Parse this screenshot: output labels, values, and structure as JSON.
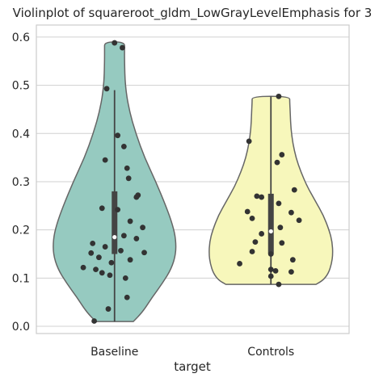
{
  "chart_data": {
    "type": "violin",
    "title": "Violinplot of squareroot_gldm_LowGrayLevelEmphasis for 3",
    "xlabel": "target",
    "ylabel": "",
    "categories": [
      "Baseline",
      "Controls"
    ],
    "ylim": [
      -0.015,
      0.625
    ],
    "yticks": [
      0.0,
      0.1,
      0.2,
      0.3,
      0.4,
      0.5,
      0.6
    ],
    "ytick_labels": [
      "0.0",
      "0.1",
      "0.2",
      "0.3",
      "0.4",
      "0.5",
      "0.6"
    ],
    "grid": true,
    "colors": {
      "Baseline": "#96cac0",
      "Controls": "#f7f7bb",
      "outline": "#666666",
      "points": "#333333",
      "box": "#444444",
      "median": "#ffffff",
      "grid": "#d0d0d0",
      "frame": "#cccccc"
    },
    "violins": [
      {
        "name": "Baseline",
        "profile": [
          [
            0.01,
            0.3
          ],
          [
            0.03,
            0.45
          ],
          [
            0.06,
            0.6
          ],
          [
            0.09,
            0.77
          ],
          [
            0.12,
            0.91
          ],
          [
            0.15,
            0.98
          ],
          [
            0.18,
            0.98
          ],
          [
            0.21,
            0.93
          ],
          [
            0.25,
            0.82
          ],
          [
            0.3,
            0.66
          ],
          [
            0.35,
            0.48
          ],
          [
            0.4,
            0.34
          ],
          [
            0.45,
            0.23
          ],
          [
            0.5,
            0.17
          ],
          [
            0.55,
            0.16
          ],
          [
            0.575,
            0.16
          ],
          [
            0.59,
            0.16
          ]
        ],
        "box": {
          "q1": 0.15,
          "median": 0.185,
          "q3": 0.28,
          "whisker_low": 0.01,
          "whisker_high": 0.49
        },
        "points": [
          [
            0.588,
            0.0
          ],
          [
            0.578,
            0.05
          ],
          [
            0.493,
            -0.05
          ],
          [
            0.396,
            0.02
          ],
          [
            0.373,
            0.06
          ],
          [
            0.345,
            -0.06
          ],
          [
            0.328,
            0.08
          ],
          [
            0.307,
            0.09
          ],
          [
            0.272,
            0.15
          ],
          [
            0.268,
            0.14
          ],
          [
            0.245,
            -0.08
          ],
          [
            0.242,
            0.02
          ],
          [
            0.218,
            0.1
          ],
          [
            0.205,
            0.18
          ],
          [
            0.188,
            0.06
          ],
          [
            0.182,
            0.14
          ],
          [
            0.172,
            -0.14
          ],
          [
            0.165,
            -0.06
          ],
          [
            0.157,
            0.04
          ],
          [
            0.153,
            0.19
          ],
          [
            0.152,
            -0.15
          ],
          [
            0.143,
            -0.1
          ],
          [
            0.138,
            0.1
          ],
          [
            0.132,
            -0.02
          ],
          [
            0.122,
            -0.2
          ],
          [
            0.118,
            -0.12
          ],
          [
            0.111,
            -0.08
          ],
          [
            0.106,
            -0.03
          ],
          [
            0.1,
            0.07
          ],
          [
            0.06,
            0.08
          ],
          [
            0.036,
            -0.04
          ],
          [
            0.011,
            -0.13
          ]
        ]
      },
      {
        "name": "Controls",
        "profile": [
          [
            0.087,
            0.72
          ],
          [
            0.095,
            0.83
          ],
          [
            0.11,
            0.92
          ],
          [
            0.13,
            0.97
          ],
          [
            0.15,
            0.99
          ],
          [
            0.175,
            0.98
          ],
          [
            0.2,
            0.93
          ],
          [
            0.23,
            0.84
          ],
          [
            0.26,
            0.71
          ],
          [
            0.29,
            0.58
          ],
          [
            0.32,
            0.48
          ],
          [
            0.35,
            0.4
          ],
          [
            0.38,
            0.35
          ],
          [
            0.41,
            0.32
          ],
          [
            0.44,
            0.31
          ],
          [
            0.465,
            0.3
          ],
          [
            0.477,
            0.3
          ]
        ],
        "box": {
          "q1": 0.15,
          "median": 0.197,
          "q3": 0.275,
          "whisker_low": 0.087,
          "whisker_high": 0.477
        },
        "points": [
          [
            0.477,
            0.05
          ],
          [
            0.384,
            -0.14
          ],
          [
            0.356,
            0.07
          ],
          [
            0.34,
            0.04
          ],
          [
            0.283,
            0.15
          ],
          [
            0.27,
            -0.09
          ],
          [
            0.268,
            -0.06
          ],
          [
            0.255,
            0.05
          ],
          [
            0.238,
            -0.15
          ],
          [
            0.236,
            0.13
          ],
          [
            0.224,
            -0.12
          ],
          [
            0.22,
            0.18
          ],
          [
            0.205,
            0.06
          ],
          [
            0.192,
            -0.06
          ],
          [
            0.175,
            -0.1
          ],
          [
            0.173,
            0.07
          ],
          [
            0.155,
            -0.12
          ],
          [
            0.15,
            0.0
          ],
          [
            0.138,
            0.14
          ],
          [
            0.13,
            -0.2
          ],
          [
            0.118,
            0.0
          ],
          [
            0.115,
            0.03
          ],
          [
            0.113,
            0.13
          ],
          [
            0.104,
            0.0
          ],
          [
            0.087,
            0.05
          ]
        ]
      }
    ]
  }
}
